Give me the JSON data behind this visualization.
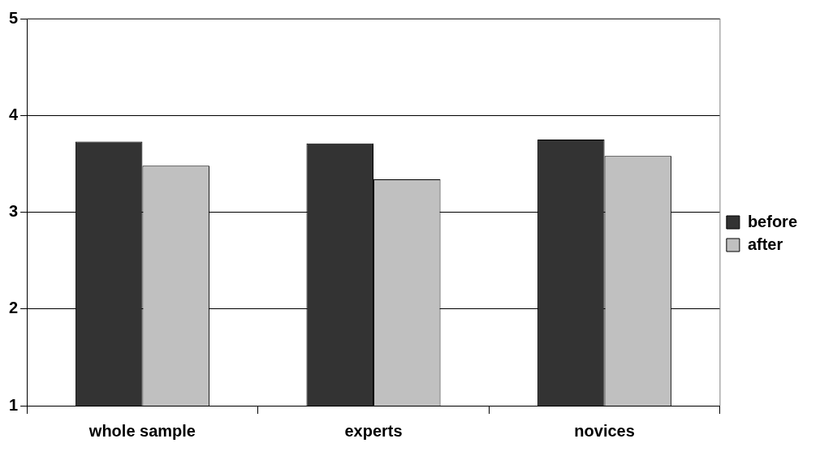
{
  "chart_data": {
    "type": "bar",
    "categories": [
      "whole sample",
      "experts",
      "novices"
    ],
    "series": [
      {
        "name": "before",
        "color": "#333333",
        "values": [
          3.73,
          3.71,
          3.75
        ]
      },
      {
        "name": "after",
        "color": "#c0c0c0",
        "values": [
          3.48,
          3.34,
          3.58
        ]
      }
    ],
    "ylim": [
      1,
      5
    ],
    "yticks": [
      1,
      2,
      3,
      4,
      5
    ],
    "grid": "y",
    "legend": "right"
  }
}
